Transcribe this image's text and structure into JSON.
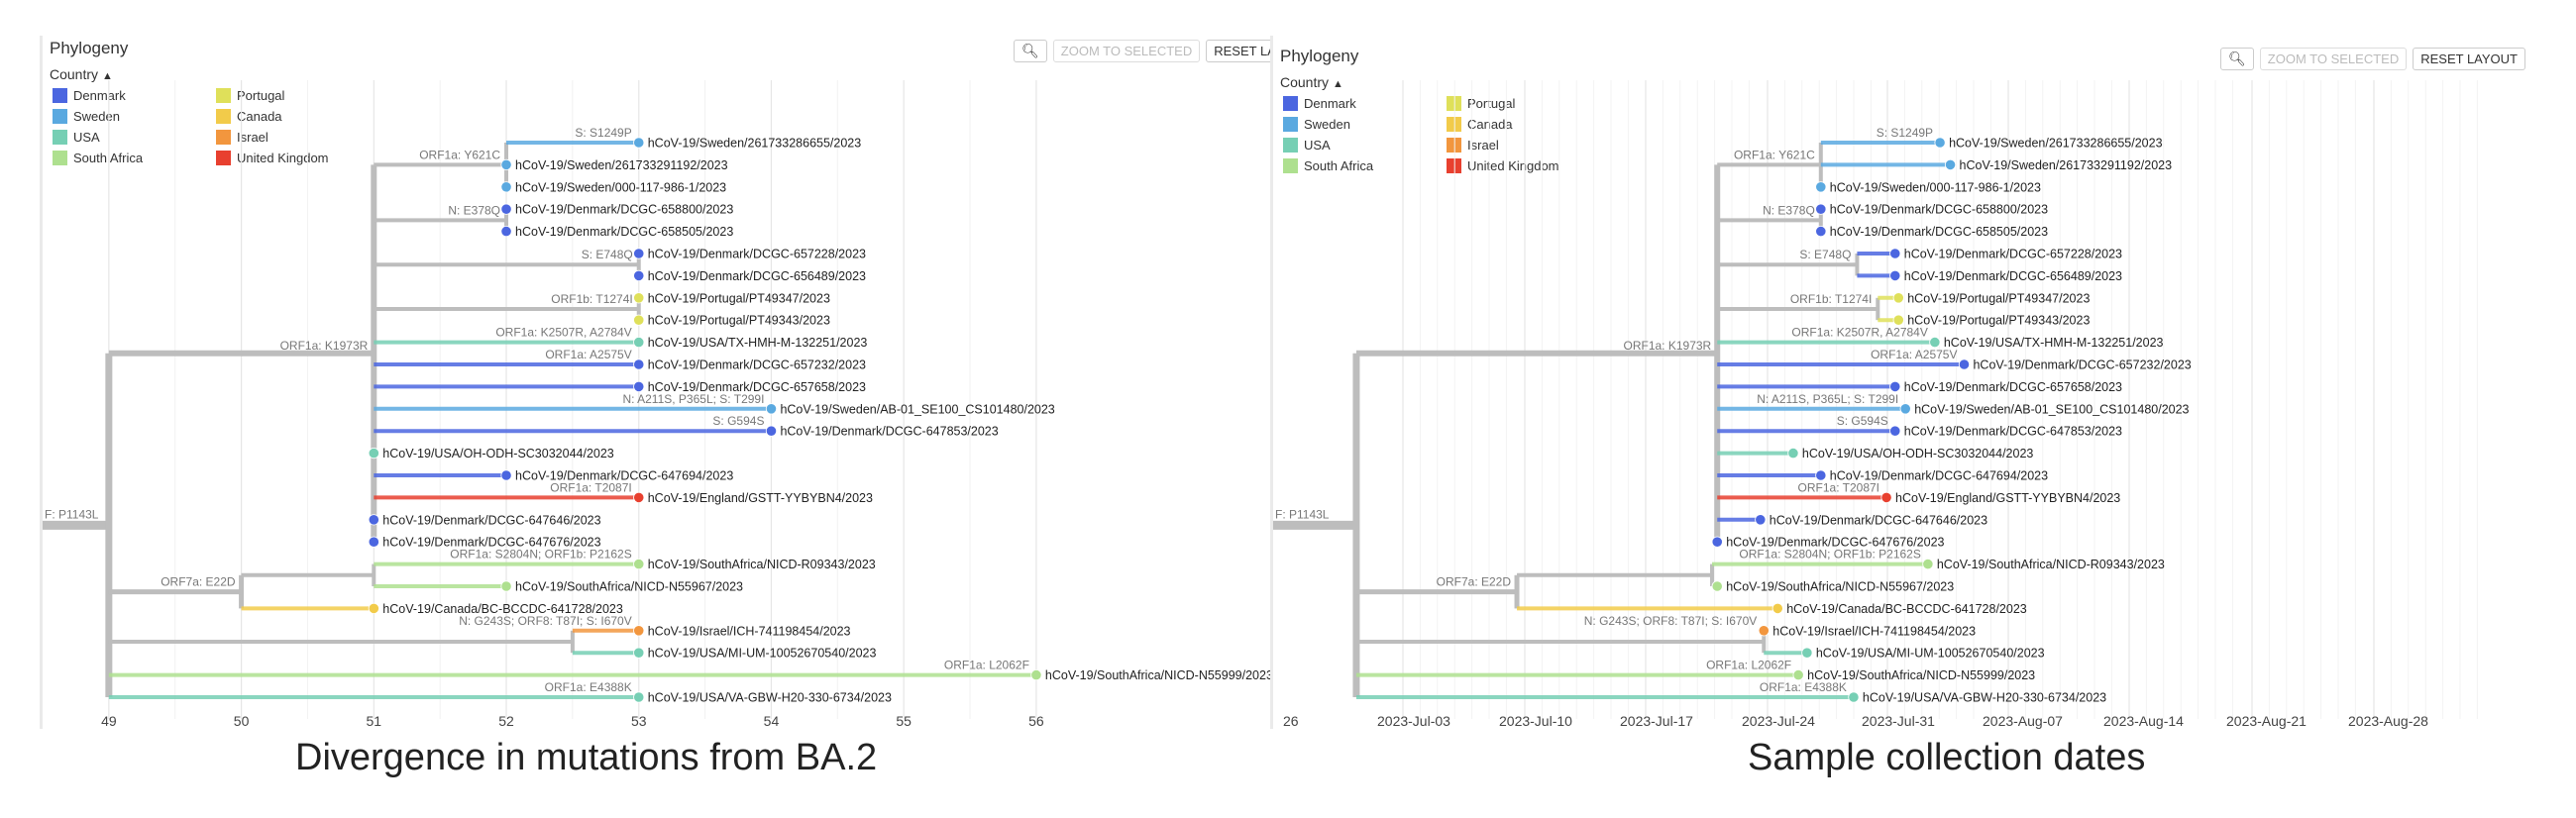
{
  "panels": [
    {
      "id": "left",
      "title": "Phylogeny",
      "color_by": "Country",
      "buttons": {
        "zoom_icon": "magnifier-icon",
        "zoom_selected": "ZOOM TO SELECTED",
        "reset": "RESET LAYOUT"
      },
      "caption": "Divergence in mutations from BA.2",
      "axis": {
        "type": "divergence",
        "ticks": [
          "49",
          "50",
          "51",
          "52",
          "53",
          "54",
          "55",
          "56"
        ],
        "range": [
          48.5,
          57.1
        ]
      },
      "root_label": "F: P1143L"
    },
    {
      "id": "right",
      "title": "Phylogeny",
      "color_by": "Country",
      "buttons": {
        "zoom_icon": "magnifier-icon",
        "zoom_selected": "ZOOM TO SELECTED",
        "reset": "RESET LAYOUT"
      },
      "caption": "Sample collection dates",
      "axis": {
        "type": "date",
        "ticks": [
          "26",
          "2023-Jul-03",
          "2023-Jul-10",
          "2023-Jul-17",
          "2023-Jul-24",
          "2023-Jul-31",
          "2023-Aug-07",
          "2023-Aug-14",
          "2023-Aug-21",
          "2023-Aug-28"
        ]
      },
      "root_label": "F: P1143L"
    }
  ],
  "legend": [
    {
      "name": "Denmark",
      "color": "#4b66e0"
    },
    {
      "name": "Sweden",
      "color": "#5aa9e0"
    },
    {
      "name": "USA",
      "color": "#76cfb4"
    },
    {
      "name": "South Africa",
      "color": "#aee08f"
    },
    {
      "name": "Portugal",
      "color": "#dfe05a"
    },
    {
      "name": "Canada",
      "color": "#f2cb4a"
    },
    {
      "name": "Israel",
      "color": "#f2963e"
    },
    {
      "name": "United Kingdom",
      "color": "#e8402f"
    }
  ],
  "tips": [
    {
      "label": "hCoV-19/Sweden/261733286655/2023",
      "country": "Sweden",
      "mutation": "S: S1249P"
    },
    {
      "label": "hCoV-19/Sweden/261733291192/2023",
      "country": "Sweden",
      "mutation": ""
    },
    {
      "label": "hCoV-19/Sweden/000-117-986-1/2023",
      "country": "Sweden",
      "mutation": ""
    },
    {
      "label": "hCoV-19/Denmark/DCGC-658800/2023",
      "country": "Denmark",
      "mutation": ""
    },
    {
      "label": "hCoV-19/Denmark/DCGC-658505/2023",
      "country": "Denmark",
      "mutation": ""
    },
    {
      "label": "hCoV-19/Denmark/DCGC-657228/2023",
      "country": "Denmark",
      "mutation": ""
    },
    {
      "label": "hCoV-19/Denmark/DCGC-656489/2023",
      "country": "Denmark",
      "mutation": ""
    },
    {
      "label": "hCoV-19/Portugal/PT49347/2023",
      "country": "Portugal",
      "mutation": ""
    },
    {
      "label": "hCoV-19/Portugal/PT49343/2023",
      "country": "Portugal",
      "mutation": ""
    },
    {
      "label": "hCoV-19/USA/TX-HMH-M-132251/2023",
      "country": "USA",
      "mutation": "ORF1a: K2507R, A2784V"
    },
    {
      "label": "hCoV-19/Denmark/DCGC-657232/2023",
      "country": "Denmark",
      "mutation": "ORF1a: A2575V"
    },
    {
      "label": "hCoV-19/Denmark/DCGC-657658/2023",
      "country": "Denmark",
      "mutation": ""
    },
    {
      "label": "hCoV-19/Sweden/AB-01_SE100_CS101480/2023",
      "country": "Sweden",
      "mutation": "N: A211S, P365L; S: T299I"
    },
    {
      "label": "hCoV-19/Denmark/DCGC-647853/2023",
      "country": "Denmark",
      "mutation": "S: G594S"
    },
    {
      "label": "hCoV-19/USA/OH-ODH-SC3032044/2023",
      "country": "USA",
      "mutation": ""
    },
    {
      "label": "hCoV-19/Denmark/DCGC-647694/2023",
      "country": "Denmark",
      "mutation": ""
    },
    {
      "label": "hCoV-19/England/GSTT-YYBYBN4/2023",
      "country": "United Kingdom",
      "mutation": "ORF1a: T2087I"
    },
    {
      "label": "hCoV-19/Denmark/DCGC-647646/2023",
      "country": "Denmark",
      "mutation": ""
    },
    {
      "label": "hCoV-19/Denmark/DCGC-647676/2023",
      "country": "Denmark",
      "mutation": ""
    },
    {
      "label": "hCoV-19/SouthAfrica/NICD-R09343/2023",
      "country": "South Africa",
      "mutation": "ORF1a: S2804N; ORF1b: P2162S"
    },
    {
      "label": "hCoV-19/SouthAfrica/NICD-N55967/2023",
      "country": "South Africa",
      "mutation": ""
    },
    {
      "label": "hCoV-19/Canada/BC-BCCDC-641728/2023",
      "country": "Canada",
      "mutation": ""
    },
    {
      "label": "hCoV-19/Israel/ICH-741198454/2023",
      "country": "Israel",
      "mutation": "N: G243S; ORF8: T87I; S: I670V"
    },
    {
      "label": "hCoV-19/USA/MI-UM-10052670540/2023",
      "country": "USA",
      "mutation": ""
    },
    {
      "label": "hCoV-19/SouthAfrica/NICD-N55999/2023",
      "country": "South Africa",
      "mutation": "ORF1a: L2062F"
    },
    {
      "label": "hCoV-19/USA/VA-GBW-H20-330-6734/2023",
      "country": "USA",
      "mutation": "ORF1a: E4388K"
    }
  ],
  "internal_labels": [
    {
      "text": "ORF1a: Y621C"
    },
    {
      "text": "N: E378Q"
    },
    {
      "text": "S: E748Q"
    },
    {
      "text": "ORF1b: T1274I"
    },
    {
      "text": "ORF1a: K1973R"
    },
    {
      "text": "ORF7a: E22D"
    }
  ],
  "tree": {
    "root": {
      "div": 48.5,
      "date": 26.3
    },
    "nodes": {
      "n0": {
        "parent": "root",
        "div": 49,
        "date": 30.3,
        "kids": [
          "nA",
          "nB",
          "nI",
          "tSA9",
          "tVA"
        ]
      },
      "nA": {
        "parent": "n0",
        "div": 51,
        "date": 51.2,
        "kids": [
          "nY",
          "nN",
          "nE",
          "nP",
          "t9",
          "t10",
          "t11",
          "t12",
          "t13",
          "t14",
          "t15",
          "t16",
          "t17",
          "t18"
        ]
      },
      "nY": {
        "parent": "nA",
        "div": 52,
        "date": 57.2,
        "kids": [
          "t0",
          "t1",
          "t2"
        ]
      },
      "nN": {
        "parent": "nA",
        "div": 52,
        "date": 57.2,
        "kids": [
          "t3",
          "t4"
        ]
      },
      "nE": {
        "parent": "nA",
        "div": 53,
        "date": 59.3,
        "kids": [
          "t5",
          "t6"
        ]
      },
      "nP": {
        "parent": "nA",
        "div": 53,
        "date": 60.5,
        "kids": [
          "t7",
          "t8"
        ]
      },
      "nB": {
        "parent": "n0",
        "div": 50,
        "date": 39.6,
        "kids": [
          "nB1",
          "t21"
        ]
      },
      "nB1": {
        "parent": "nB",
        "div": 51,
        "date": 50.9,
        "kids": [
          "t19",
          "t20"
        ]
      },
      "nI": {
        "parent": "n0",
        "div": 52.5,
        "date": 53.9,
        "kids": [
          "t22",
          "t23"
        ]
      }
    },
    "tips": {
      "t0": {
        "div": 53,
        "date": 64.1
      },
      "t1": {
        "div": 52,
        "date": 64.7
      },
      "t2": {
        "div": 52,
        "date": 57.2
      },
      "t3": {
        "div": 52,
        "date": 57.2
      },
      "t4": {
        "div": 52,
        "date": 57.2
      },
      "t5": {
        "div": 53,
        "date": 61.5
      },
      "t6": {
        "div": 53,
        "date": 61.5
      },
      "t7": {
        "div": 53,
        "date": 61.7
      },
      "t8": {
        "div": 53,
        "date": 61.7
      },
      "t9": {
        "div": 53,
        "date": 63.8
      },
      "t10": {
        "div": 53,
        "date": 65.5
      },
      "t11": {
        "div": 53,
        "date": 61.5
      },
      "t12": {
        "div": 54,
        "date": 62.1
      },
      "t13": {
        "div": 54,
        "date": 61.5
      },
      "t14": {
        "div": 51,
        "date": 55.6
      },
      "t15": {
        "div": 52,
        "date": 57.2
      },
      "t16": {
        "div": 53,
        "date": 61.0
      },
      "t17": {
        "div": 51,
        "date": 53.7
      },
      "t18": {
        "div": 51,
        "date": 51.2
      },
      "t19": {
        "div": 53,
        "date": 63.4
      },
      "t20": {
        "div": 52,
        "date": 51.2
      },
      "t21": {
        "div": 51,
        "date": 54.7
      },
      "t22": {
        "div": 53,
        "date": 53.9
      },
      "t23": {
        "div": 53,
        "date": 56.4
      },
      "tSA9": {
        "parent": "n0",
        "div": 56,
        "date": 55.9
      },
      "tVA": {
        "parent": "n0",
        "div": 53,
        "date": 59.1
      }
    }
  }
}
